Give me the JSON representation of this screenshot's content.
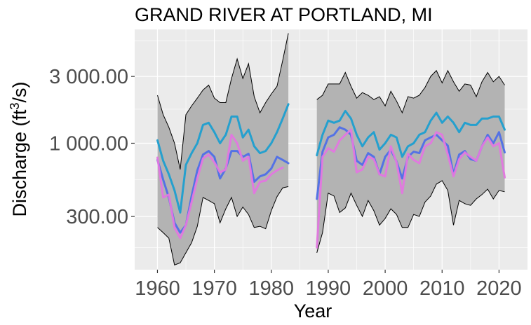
{
  "chart_data": {
    "type": "line",
    "title": "GRAND RIVER AT PORTLAND, MI",
    "xlabel": "Year",
    "ylabel": "Discharge (ft³/s)",
    "ylabel_parts": {
      "before": "Discharge (ft",
      "sup": "3",
      "after": "/s)"
    },
    "y_scale": "log",
    "xlim": [
      1956,
      2025
    ],
    "ylim": [
      125,
      6500
    ],
    "x_ticks": [
      1960,
      1970,
      1980,
      1990,
      2000,
      2010,
      2020
    ],
    "x_tick_labels": [
      "1960",
      "1970",
      "1980",
      "1990",
      "2000",
      "2010",
      "2020"
    ],
    "y_ticks": [
      300,
      1000,
      3000
    ],
    "y_tick_labels": [
      "300.00",
      "1 000.00",
      "3 000.00"
    ],
    "y_minor_ticks": [
      180,
      550,
      1750,
      5400
    ],
    "grid": true,
    "colors": {
      "panel": "#ebebeb",
      "grid": "#ffffff",
      "band_fill": "#b3b3b3",
      "band_edge": "#000000",
      "series_1": "#1e9fd0",
      "series_2": "#4f6fe8",
      "series_3": "#e377e0"
    },
    "segments": [
      {
        "x": [
          1960,
          1961,
          1962,
          1963,
          1964,
          1965,
          1966,
          1967,
          1968,
          1969,
          1970,
          1971,
          1972,
          1973,
          1974,
          1975,
          1976,
          1977,
          1978,
          1979,
          1980,
          1981,
          1982,
          1983
        ],
        "band_upper": [
          2200,
          1600,
          1300,
          1000,
          650,
          1600,
          1850,
          2100,
          2400,
          2600,
          2100,
          1950,
          1950,
          2900,
          4000,
          2900,
          3700,
          2150,
          1650,
          1950,
          2250,
          2550,
          3900,
          6100
        ],
        "band_lower": [
          250,
          230,
          210,
          135,
          140,
          165,
          195,
          255,
          410,
          390,
          370,
          270,
          340,
          410,
          300,
          350,
          310,
          250,
          255,
          245,
          330,
          415,
          480,
          490
        ],
        "series": [
          {
            "name": "",
            "color": "#1e9fd0",
            "values": [
              1050,
              750,
              600,
              460,
              320,
              700,
              850,
              1000,
              1350,
              1400,
              1200,
              1000,
              1150,
              1550,
              1550,
              1100,
              1250,
              950,
              850,
              880,
              1000,
              1200,
              1500,
              1900
            ]
          },
          {
            "name": "",
            "color": "#4f6fe8",
            "values": [
              760,
              550,
              410,
              270,
              230,
              260,
              420,
              640,
              830,
              880,
              800,
              560,
              660,
              880,
              880,
              800,
              840,
              530,
              580,
              600,
              660,
              800,
              760,
              720
            ]
          },
          {
            "name": "",
            "color": "#e377e0",
            "values": [
              790,
              410,
              430,
              250,
              210,
              260,
              380,
              560,
              780,
              830,
              730,
              620,
              650,
              1150,
              1000,
              750,
              800,
              440,
              530,
              540,
              600,
              640,
              670,
              null
            ]
          }
        ]
      },
      {
        "x": [
          1988,
          1989,
          1990,
          1991,
          1992,
          1993,
          1994,
          1995,
          1996,
          1997,
          1998,
          1999,
          2000,
          2001,
          2002,
          2003,
          2004,
          2005,
          2006,
          2007,
          2008,
          2009,
          2010,
          2011,
          2012,
          2013,
          2014,
          2015,
          2016,
          2017,
          2018,
          2019,
          2020,
          2021
        ],
        "band_upper": [
          2050,
          2200,
          2650,
          2650,
          2650,
          3200,
          2550,
          2100,
          2300,
          2200,
          2050,
          2150,
          1850,
          2350,
          2000,
          1650,
          2150,
          2100,
          2200,
          2500,
          3000,
          3300,
          2700,
          3300,
          2750,
          2350,
          2650,
          2600,
          2150,
          2750,
          3200,
          2750,
          3000,
          2600
        ],
        "band_lower": [
          165,
          230,
          440,
          420,
          320,
          345,
          440,
          360,
          300,
          390,
          330,
          260,
          290,
          340,
          310,
          250,
          250,
          310,
          300,
          380,
          420,
          510,
          540,
          460,
          260,
          390,
          370,
          360,
          400,
          430,
          470,
          400,
          460,
          450
        ],
        "series": [
          {
            "name": "",
            "color": "#1e9fd0",
            "values": [
              820,
              1150,
              1450,
              1400,
              1450,
              1700,
              1500,
              1150,
              950,
              1100,
              1200,
              900,
              1000,
              1150,
              1100,
              800,
              950,
              1000,
              1150,
              1200,
              1450,
              1650,
              1400,
              1550,
              1400,
              1200,
              1400,
              1350,
              1350,
              1500,
              1500,
              1550,
              1550,
              1250
            ]
          },
          {
            "name": "",
            "color": "#4f6fe8",
            "values": [
              400,
              870,
              1100,
              1150,
              1300,
              1250,
              1150,
              750,
              700,
              850,
              800,
              600,
              800,
              900,
              740,
              560,
              800,
              870,
              850,
              1050,
              1100,
              1150,
              1050,
              960,
              600,
              830,
              880,
              770,
              750,
              950,
              1150,
              1000,
              1200,
              860
            ]
          },
          {
            "name": "",
            "color": "#e377e0",
            "values": [
              180,
              800,
              920,
              870,
              1050,
              1150,
              1250,
              620,
              650,
              800,
              770,
              600,
              580,
              950,
              730,
              440,
              840,
              760,
              720,
              950,
              1000,
              1200,
              1150,
              830,
              580,
              770,
              860,
              800,
              750,
              950,
              1100,
              950,
              1000,
              570
            ]
          }
        ]
      }
    ]
  }
}
